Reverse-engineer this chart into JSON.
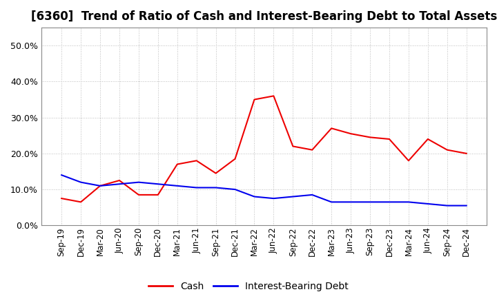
{
  "title": "[6360]  Trend of Ratio of Cash and Interest-Bearing Debt to Total Assets",
  "x_labels": [
    "Sep-19",
    "Dec-19",
    "Mar-20",
    "Jun-20",
    "Sep-20",
    "Dec-20",
    "Mar-21",
    "Jun-21",
    "Sep-21",
    "Dec-21",
    "Mar-22",
    "Jun-22",
    "Sep-22",
    "Dec-22",
    "Mar-23",
    "Jun-23",
    "Sep-23",
    "Dec-23",
    "Mar-24",
    "Jun-24",
    "Sep-24",
    "Dec-24"
  ],
  "cash": [
    7.5,
    6.5,
    11.0,
    12.5,
    8.5,
    8.5,
    17.0,
    18.0,
    14.5,
    18.5,
    35.0,
    36.0,
    22.0,
    21.0,
    27.0,
    25.5,
    24.5,
    24.0,
    18.0,
    24.0,
    21.0,
    20.0
  ],
  "debt": [
    14.0,
    12.0,
    11.0,
    11.5,
    12.0,
    11.5,
    11.0,
    10.5,
    10.5,
    10.0,
    8.0,
    7.5,
    8.0,
    8.5,
    6.5,
    6.5,
    6.5,
    6.5,
    6.5,
    6.0,
    5.5,
    5.5
  ],
  "cash_color": "#EE0000",
  "debt_color": "#0000EE",
  "background_color": "#FFFFFF",
  "grid_color": "#BBBBBB",
  "ylim": [
    0,
    55
  ],
  "yticks": [
    0.0,
    10.0,
    20.0,
    30.0,
    40.0,
    50.0
  ],
  "legend_cash": "Cash",
  "legend_debt": "Interest-Bearing Debt",
  "title_fontsize": 12,
  "tick_fontsize": 8.5,
  "ytick_fontsize": 9
}
